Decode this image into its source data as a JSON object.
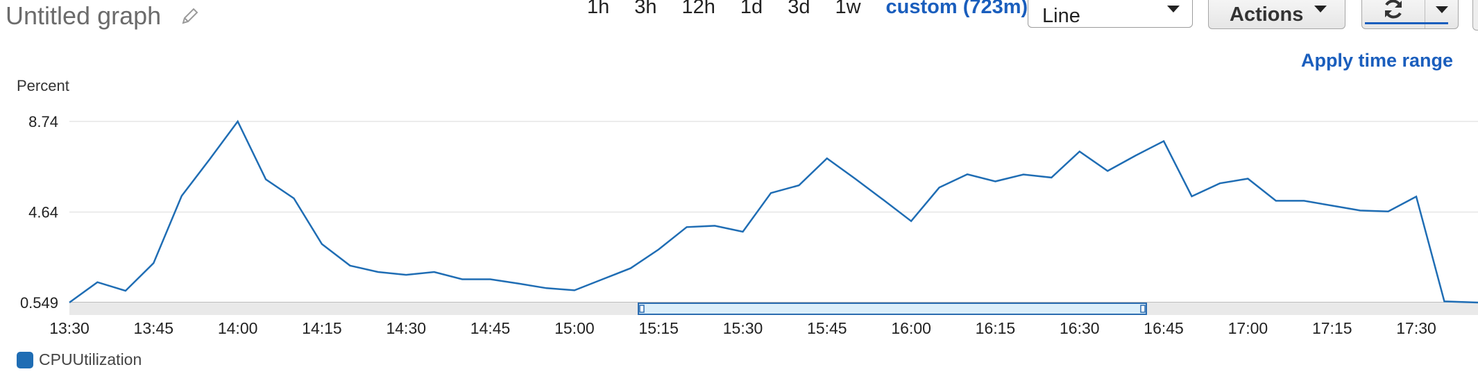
{
  "header": {
    "title": "Untitled graph",
    "time_ranges": [
      "1h",
      "3h",
      "12h",
      "1d",
      "3d",
      "1w"
    ],
    "custom_range": "custom (723m)",
    "graph_type": "Line",
    "actions_label": "Actions",
    "apply_time_range": "Apply time range"
  },
  "colors": {
    "accent": "#1a5ebd",
    "series": "#1f6db4",
    "grid": "#e6e6e6"
  },
  "chart_data": {
    "type": "line",
    "ylabel": "Percent",
    "yticks": [
      "8.74",
      "4.64",
      "0.549"
    ],
    "ylim": [
      0.549,
      8.74
    ],
    "xlabels": [
      "13:30",
      "13:45",
      "14:00",
      "14:15",
      "14:30",
      "14:45",
      "15:00",
      "15:15",
      "15:30",
      "15:45",
      "16:00",
      "16:15",
      "16:30",
      "16:45",
      "17:00",
      "17:15",
      "17:30"
    ],
    "xlim": [
      "13:30",
      "17:41"
    ],
    "series": [
      {
        "name": "CPUUtilization",
        "x": [
          "13:30",
          "13:35",
          "13:40",
          "13:45",
          "13:50",
          "13:55",
          "14:00",
          "14:05",
          "14:10",
          "14:15",
          "14:20",
          "14:25",
          "14:30",
          "14:35",
          "14:40",
          "14:45",
          "14:50",
          "14:55",
          "15:00",
          "15:05",
          "15:10",
          "15:15",
          "15:20",
          "15:25",
          "15:30",
          "15:35",
          "15:40",
          "15:45",
          "15:50",
          "15:55",
          "16:00",
          "16:05",
          "16:10",
          "16:15",
          "16:20",
          "16:25",
          "16:30",
          "16:35",
          "16:40",
          "16:45",
          "16:50",
          "16:55",
          "17:00",
          "17:05",
          "17:10",
          "17:15",
          "17:20",
          "17:25",
          "17:30",
          "17:35",
          "17:41"
        ],
        "values": [
          0.549,
          1.47,
          1.08,
          2.33,
          5.37,
          7.03,
          8.74,
          6.12,
          5.26,
          3.19,
          2.22,
          1.93,
          1.8,
          1.93,
          1.6,
          1.6,
          1.41,
          1.2,
          1.1,
          1.6,
          2.1,
          2.95,
          3.96,
          4.02,
          3.75,
          5.5,
          5.85,
          7.07,
          6.15,
          5.2,
          4.23,
          5.75,
          6.35,
          6.03,
          6.34,
          6.2,
          7.38,
          6.5,
          7.2,
          7.85,
          5.35,
          5.94,
          6.15,
          5.15,
          5.15,
          4.93,
          4.71,
          4.67,
          5.34,
          0.6,
          0.549
        ]
      }
    ],
    "grid": true,
    "legend_position": "bottom-left"
  }
}
